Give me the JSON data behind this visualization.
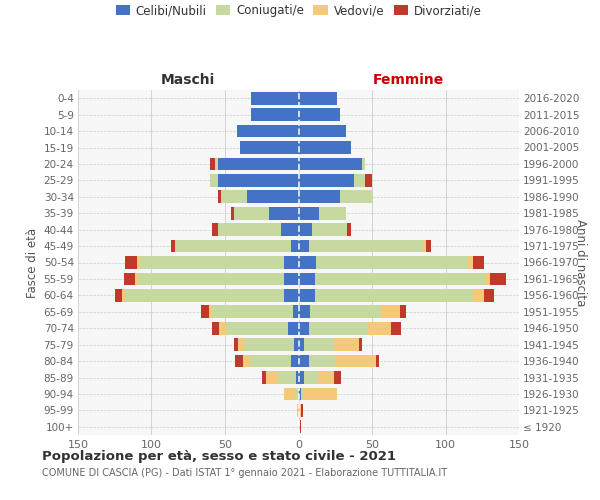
{
  "age_groups": [
    "100+",
    "95-99",
    "90-94",
    "85-89",
    "80-84",
    "75-79",
    "70-74",
    "65-69",
    "60-64",
    "55-59",
    "50-54",
    "45-49",
    "40-44",
    "35-39",
    "30-34",
    "25-29",
    "20-24",
    "15-19",
    "10-14",
    "5-9",
    "0-4"
  ],
  "birth_years": [
    "≤ 1920",
    "1921-1925",
    "1926-1930",
    "1931-1935",
    "1936-1940",
    "1941-1945",
    "1946-1950",
    "1951-1955",
    "1956-1960",
    "1961-1965",
    "1966-1970",
    "1971-1975",
    "1976-1980",
    "1981-1985",
    "1986-1990",
    "1991-1995",
    "1996-2000",
    "2001-2005",
    "2006-2010",
    "2011-2015",
    "2016-2020"
  ],
  "male_celibi": [
    0,
    0,
    0,
    2,
    5,
    3,
    7,
    4,
    10,
    10,
    10,
    5,
    12,
    20,
    35,
    55,
    55,
    40,
    42,
    32,
    32
  ],
  "male_coniugati": [
    0,
    0,
    2,
    12,
    28,
    34,
    42,
    55,
    108,
    99,
    98,
    79,
    43,
    24,
    18,
    5,
    2,
    0,
    0,
    0,
    0
  ],
  "male_vedovi": [
    0,
    1,
    8,
    8,
    5,
    4,
    5,
    2,
    2,
    2,
    2,
    0,
    0,
    0,
    0,
    0,
    0,
    0,
    0,
    0,
    0
  ],
  "male_divorziati": [
    0,
    0,
    0,
    3,
    5,
    3,
    5,
    5,
    5,
    8,
    8,
    3,
    4,
    2,
    2,
    0,
    3,
    0,
    0,
    0,
    0
  ],
  "female_celibi": [
    0,
    0,
    2,
    4,
    7,
    4,
    7,
    8,
    11,
    11,
    12,
    7,
    9,
    14,
    28,
    38,
    43,
    36,
    32,
    28,
    26
  ],
  "female_coniugati": [
    0,
    0,
    2,
    9,
    18,
    20,
    40,
    48,
    108,
    116,
    103,
    78,
    24,
    18,
    23,
    7,
    2,
    0,
    0,
    0,
    0
  ],
  "female_vedovi": [
    1,
    2,
    22,
    11,
    28,
    17,
    16,
    13,
    7,
    3,
    4,
    2,
    0,
    0,
    0,
    0,
    0,
    0,
    0,
    0,
    0
  ],
  "female_divorziati": [
    1,
    1,
    0,
    5,
    2,
    2,
    7,
    4,
    7,
    11,
    7,
    3,
    3,
    0,
    0,
    5,
    0,
    0,
    0,
    0,
    0
  ],
  "colors": {
    "celibi": "#4472c4",
    "coniugati": "#c5d9a0",
    "vedovi": "#f5c97a",
    "divorziati": "#c0392b"
  },
  "xlim": 150,
  "title": "Popolazione per età, sesso e stato civile - 2021",
  "subtitle": "COMUNE DI CASCIA (PG) - Dati ISTAT 1° gennaio 2021 - Elaborazione TUTTITALIA.IT",
  "ylabel_left": "Fasce di età",
  "ylabel_right": "Anni di nascita",
  "maschi_label": "Maschi",
  "femmine_label": "Femmine",
  "maschi_color": "#333333",
  "femmine_color": "#cc0000",
  "bg_color": "#ffffff",
  "plot_bg": "#f7f7f7",
  "grid_color": "#cccccc",
  "legend_labels": [
    "Celibi/Nubili",
    "Coniugati/e",
    "Vedovi/e",
    "Divorziati/e"
  ]
}
